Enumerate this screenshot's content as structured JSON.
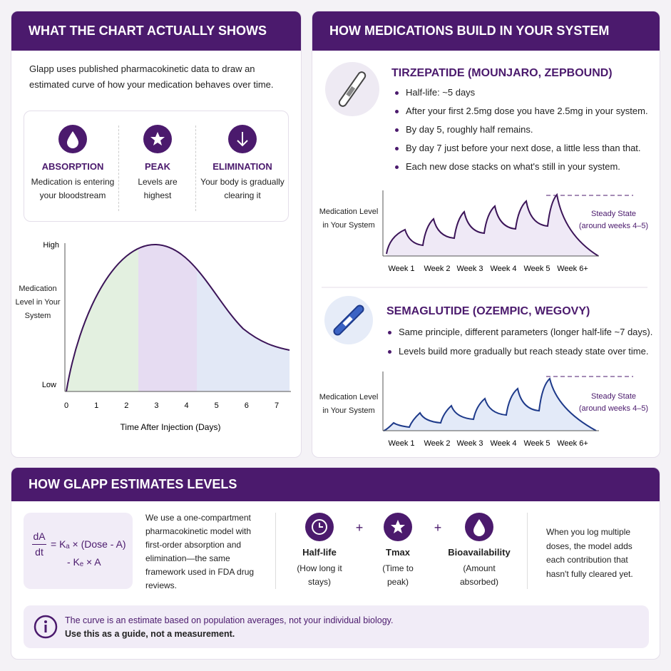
{
  "chart_explainer": {
    "title": "WHAT THE CHART ACTUALLY SHOWS",
    "intro": "Glapp uses published pharmacokinetic data to draw an estimated curve of how your medication behaves over time.",
    "phases": [
      {
        "label": "ABSORPTION",
        "description": "Medication is entering your bloodstream"
      },
      {
        "label": "PEAK",
        "description": "Levels are highest"
      },
      {
        "label": "ELIMINATION",
        "description": "Your body is gradually clearing it"
      }
    ],
    "chart": {
      "y_label": "Medication Level in Your System",
      "y_high": "High",
      "y_low": "Low",
      "x_label": "Time After Injection (Days)",
      "xticks": [
        0,
        1,
        2,
        3,
        4,
        5,
        6,
        7
      ]
    }
  },
  "medications": {
    "title": "HOW MEDICATIONS BUILD IN YOUR SYSTEM",
    "drugs": [
      {
        "name": "TIRZEPATIDE (MOUNJARO, ZEPBOUND)",
        "bullets": [
          "Half-life: ~5 days",
          "After your first 2.5mg dose you have 2.5mg in your system.",
          "By day 5, roughly half remains.",
          "By day 7 just before your next dose, a little less than that.",
          "Each new dose stacks on what's still in your system."
        ],
        "chart": {
          "y_label": "Medication Level in Your System",
          "weeks": [
            "Week 1",
            "Week 2",
            "Week 3",
            "Week 4",
            "Week 5",
            "Week 6+"
          ],
          "annotation": "Steady State",
          "annotation_note": "(around weeks 4–5)"
        }
      },
      {
        "name": "SEMAGLUTIDE (OZEMPIC, WEGOVY)",
        "bullets": [
          "Same principle, different parameters (longer half-life ~7 days).",
          "Levels build more gradually but reach steady state over time."
        ],
        "chart": {
          "y_label": "Medication Level in Your System",
          "weeks": [
            "Week 1",
            "Week 2",
            "Week 3",
            "Week 4",
            "Week 5",
            "Week 6+"
          ],
          "annotation": "Steady State",
          "annotation_note": "(around weeks 4–5)"
        }
      }
    ]
  },
  "estimation": {
    "title": "HOW GLAPP ESTIMATES LEVELS",
    "formula": {
      "numerator": "dA",
      "denominator": "dt",
      "line1": "= Kₐ × (Dose - A)",
      "line2": "- Kₑ × A"
    },
    "model_text": "We use a one-compartment pharmacokinetic model with first-order absorption and elimination—the same framework used in FDA drug reviews.",
    "factors": [
      {
        "label": "Half-life",
        "description": "(How long it stays)"
      },
      {
        "label": "Tmax",
        "description": "(Time to peak)"
      },
      {
        "label": "Bioavailability",
        "description": "(Amount absorbed)"
      }
    ],
    "operator": "+",
    "multiple_doses": "When you log multiple doses, the model adds each contribution that hasn't fully cleared yet.",
    "disclaimer": "The curve is an estimate based on population averages, not your individual biology.",
    "disclaimer_strong": "Use this as a guide, not a measurement."
  }
}
